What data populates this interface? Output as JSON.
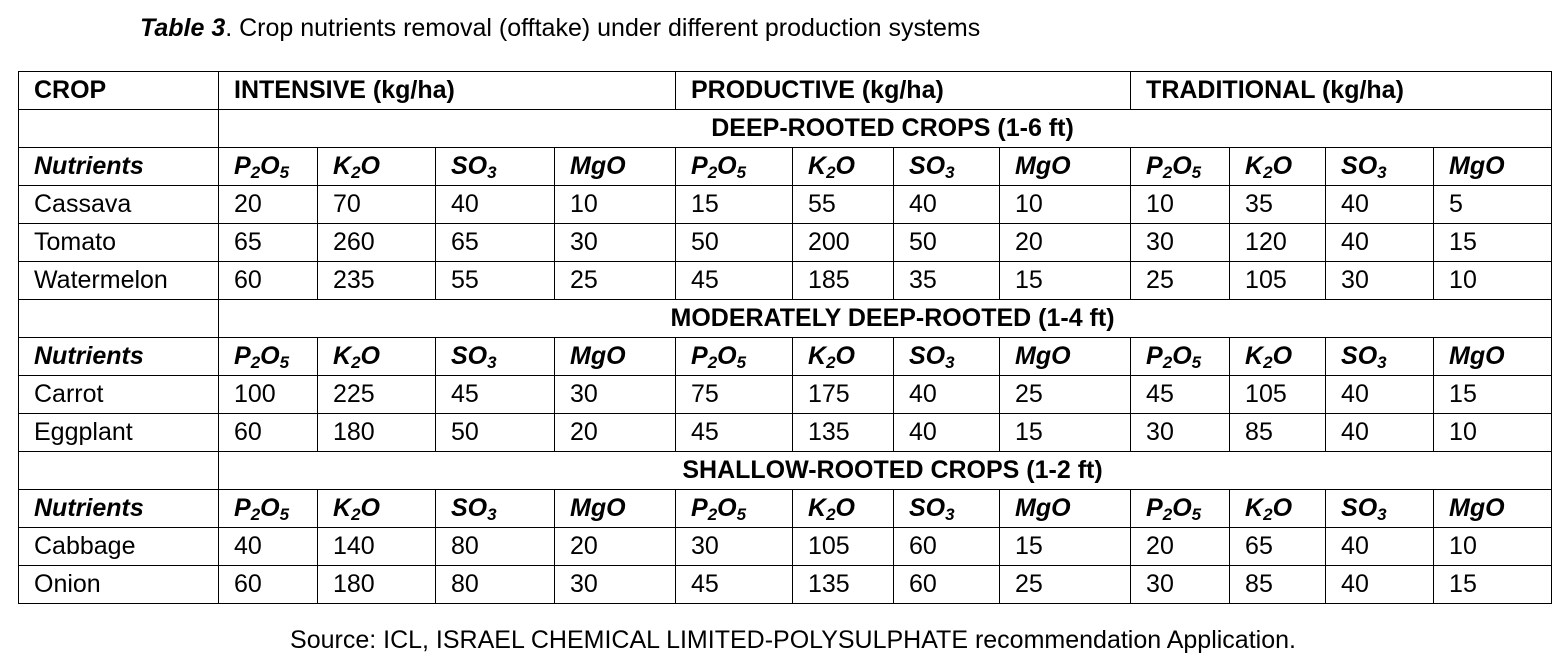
{
  "caption": {
    "label": "Table 3",
    "text": ". Crop nutrients removal (offtake) under different production systems"
  },
  "header": {
    "crop": "CROP",
    "intensive": "INTENSIVE (kg/ha)",
    "productive": "PRODUCTIVE (kg/ha)",
    "traditional": "TRADITIONAL (kg/ha)"
  },
  "nutrients_row": {
    "label": "Nutrients",
    "p2o5": {
      "a": "P",
      "a_sub": "2",
      "b": "O",
      "b_sub": "5"
    },
    "k2o": {
      "a": "K",
      "a_sub": "2",
      "b": "O"
    },
    "so3": {
      "a": "SO",
      "a_sub": "3"
    },
    "mgo": "MgO"
  },
  "groups": [
    {
      "title": "DEEP-ROOTED CROPS (1-6 ft)",
      "rows": [
        {
          "crop": "Cassava",
          "values": [
            "20",
            "70",
            "40",
            "10",
            "15",
            "55",
            "40",
            "10",
            "10",
            "35",
            "40",
            "5"
          ]
        },
        {
          "crop": "Tomato",
          "values": [
            "65",
            "260",
            "65",
            "30",
            "50",
            "200",
            "50",
            "20",
            "30",
            "120",
            "40",
            "15"
          ]
        },
        {
          "crop": "Watermelon",
          "values": [
            "60",
            "235",
            "55",
            "25",
            "45",
            "185",
            "35",
            "15",
            "25",
            "105",
            "30",
            "10"
          ]
        }
      ]
    },
    {
      "title": "MODERATELY DEEP-ROOTED (1-4 ft)",
      "rows": [
        {
          "crop": "Carrot",
          "values": [
            "100",
            "225",
            "45",
            "30",
            "75",
            "175",
            "40",
            "25",
            "45",
            "105",
            "40",
            "15"
          ]
        },
        {
          "crop": "Eggplant",
          "values": [
            "60",
            "180",
            "50",
            "20",
            "45",
            "135",
            "40",
            "15",
            "30",
            "85",
            "40",
            "10"
          ]
        }
      ]
    },
    {
      "title": "SHALLOW-ROOTED CROPS (1-2 ft)",
      "rows": [
        {
          "crop": "Cabbage",
          "values": [
            "40",
            "140",
            "80",
            "20",
            "30",
            "105",
            "60",
            "15",
            "20",
            "65",
            "40",
            "10"
          ]
        },
        {
          "crop": "Onion",
          "values": [
            "60",
            "180",
            "80",
            "30",
            "45",
            "135",
            "60",
            "25",
            "30",
            "85",
            "40",
            "15"
          ]
        }
      ]
    }
  ],
  "source": "Source: ICL, ISRAEL CHEMICAL LIMITED-POLYSULPHATE recommendation Application."
}
